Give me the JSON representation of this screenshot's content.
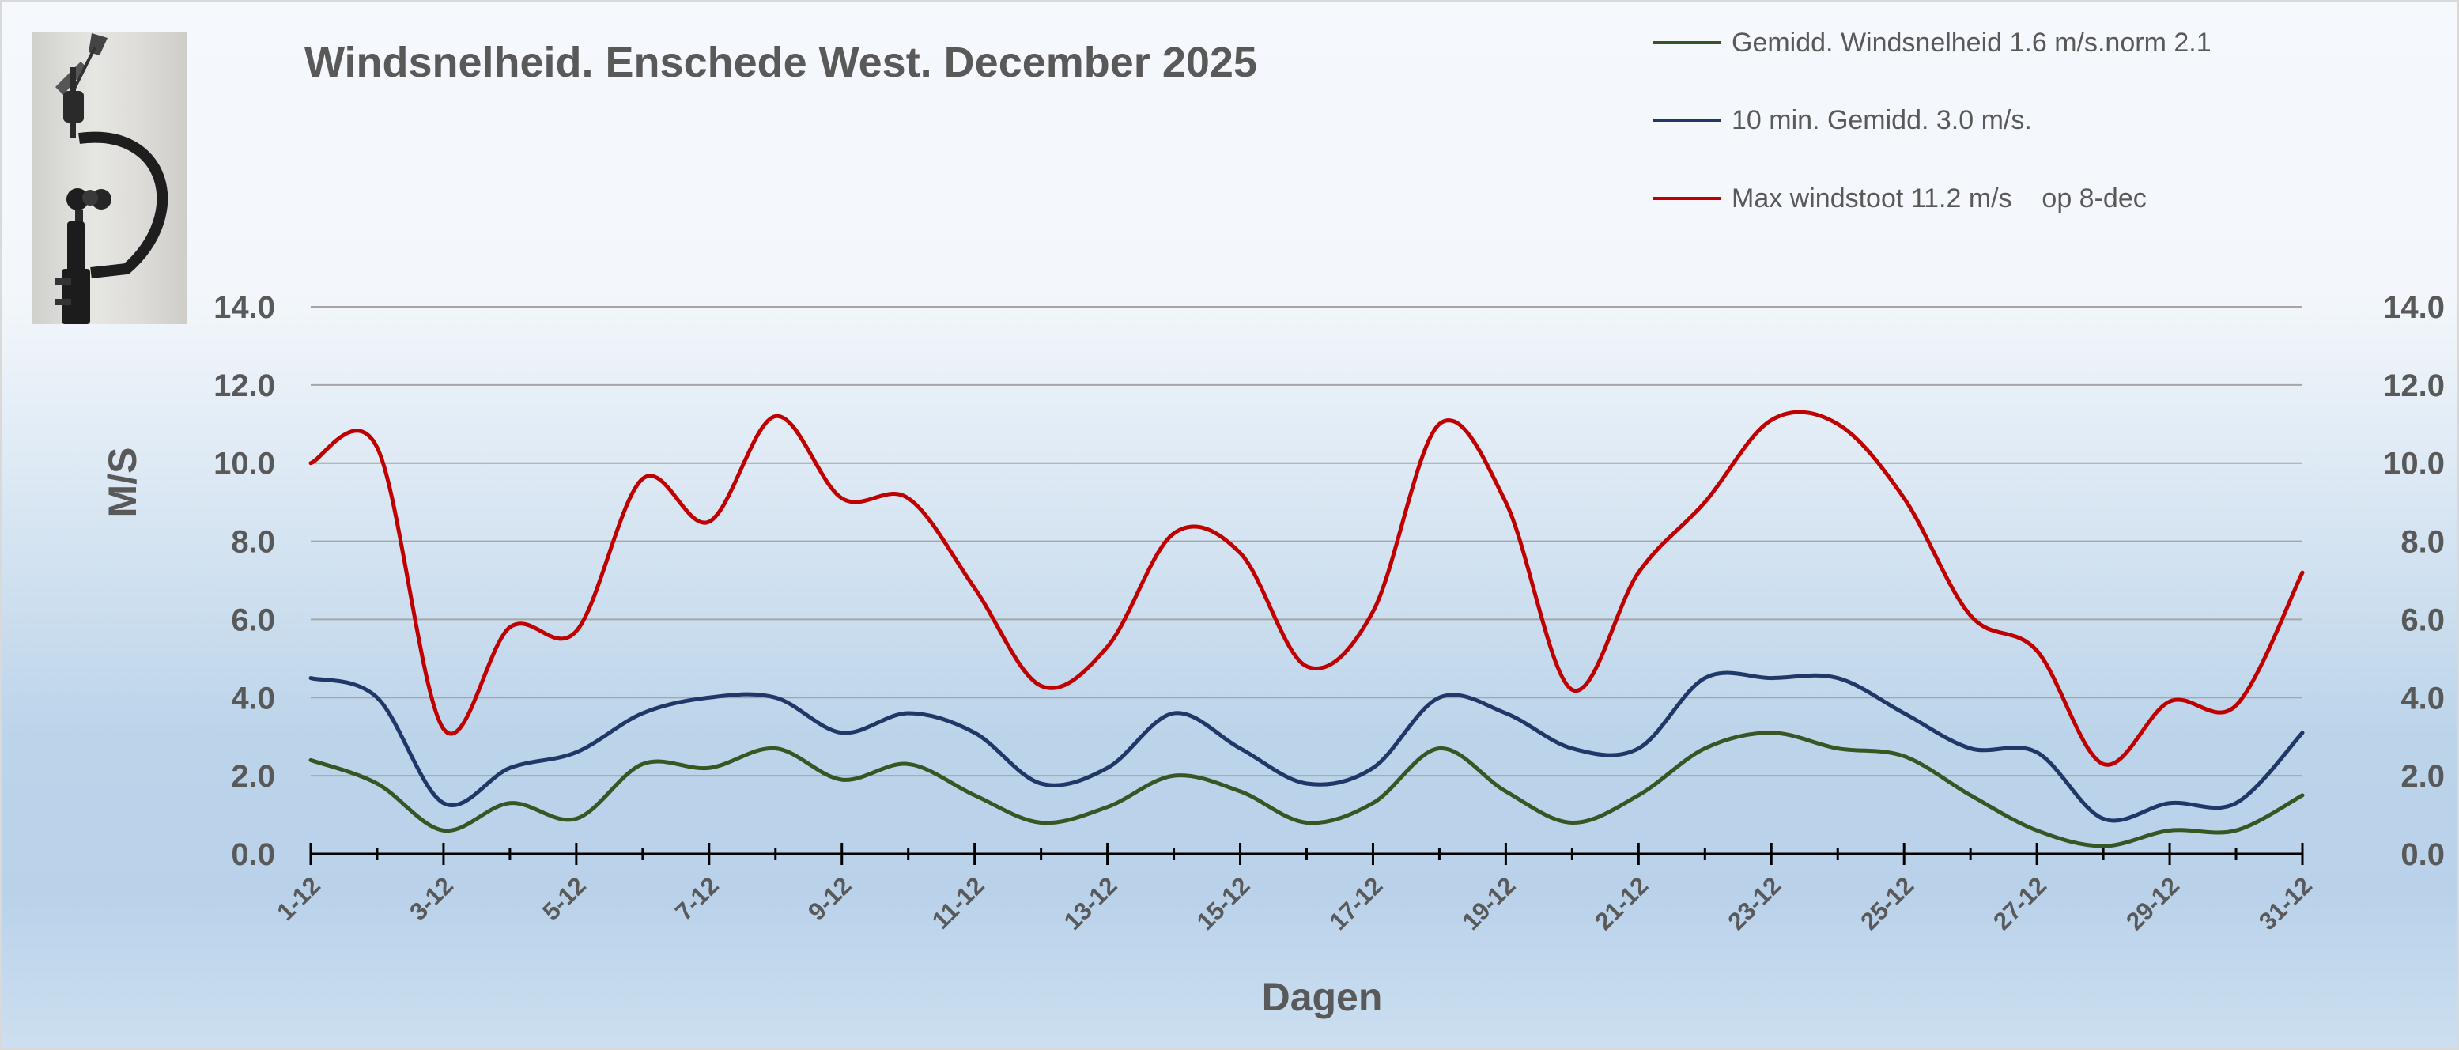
{
  "chart_data": {
    "type": "line",
    "title": "Windsnelheid. Enschede West. December 2025",
    "xlabel": "Dagen",
    "ylabel": "M/S",
    "ylim": [
      0,
      14
    ],
    "y_ticks": [
      "0.0",
      "2.0",
      "4.0",
      "6.0",
      "8.0",
      "10.0",
      "12.0",
      "14.0"
    ],
    "secondary_y_ticks": [
      "0.0",
      "2.0",
      "4.0",
      "6.0",
      "8.0",
      "10.0",
      "12.0",
      "14.0"
    ],
    "grid": true,
    "legend_position": "top-right",
    "x": [
      "1-12",
      "2-12",
      "3-12",
      "4-12",
      "5-12",
      "6-12",
      "7-12",
      "8-12",
      "9-12",
      "10-12",
      "11-12",
      "12-12",
      "13-12",
      "14-12",
      "15-12",
      "16-12",
      "17-12",
      "18-12",
      "19-12",
      "20-12",
      "21-12",
      "22-12",
      "23-12",
      "24-12",
      "25-12",
      "26-12",
      "27-12",
      "28-12",
      "29-12",
      "30-12",
      "31-12"
    ],
    "x_tick_labels": [
      "1-12",
      "3-12",
      "5-12",
      "7-12",
      "9-12",
      "11-12",
      "13-12",
      "15-12",
      "17-12",
      "19-12",
      "21-12",
      "23-12",
      "25-12",
      "27-12",
      "29-12",
      "31-12"
    ],
    "series": [
      {
        "name": "Gemidd. Windsnelheid 1.6 m/s.norm 2.1",
        "color": "#375623",
        "values": [
          2.4,
          1.8,
          0.6,
          1.3,
          0.9,
          2.3,
          2.2,
          2.7,
          1.9,
          2.3,
          1.5,
          0.8,
          1.2,
          2.0,
          1.6,
          0.8,
          1.3,
          2.7,
          1.6,
          0.8,
          1.5,
          2.7,
          3.1,
          2.7,
          2.5,
          1.5,
          0.6,
          0.2,
          0.6,
          0.6,
          1.5
        ]
      },
      {
        "name": "10 min. Gemidd. 3.0 m/s.",
        "color": "#1f3868",
        "values": [
          4.5,
          4.0,
          1.3,
          2.2,
          2.6,
          3.6,
          4.0,
          4.0,
          3.1,
          3.6,
          3.1,
          1.8,
          2.2,
          3.6,
          2.7,
          1.8,
          2.2,
          4.0,
          3.6,
          2.7,
          2.7,
          4.5,
          4.5,
          4.5,
          3.6,
          2.7,
          2.6,
          0.9,
          1.3,
          1.3,
          3.1
        ]
      },
      {
        "name": "Max windstoot 11.2 m/s    op 8-dec",
        "color": "#c00000",
        "values": [
          10.0,
          10.4,
          3.2,
          5.8,
          5.7,
          9.6,
          8.5,
          11.2,
          9.1,
          9.1,
          6.8,
          4.3,
          5.3,
          8.2,
          7.7,
          4.8,
          6.2,
          11.0,
          9.0,
          4.2,
          7.2,
          9.0,
          11.1,
          11.0,
          9.1,
          6.1,
          5.2,
          2.3,
          3.9,
          3.8,
          7.2
        ]
      }
    ]
  }
}
